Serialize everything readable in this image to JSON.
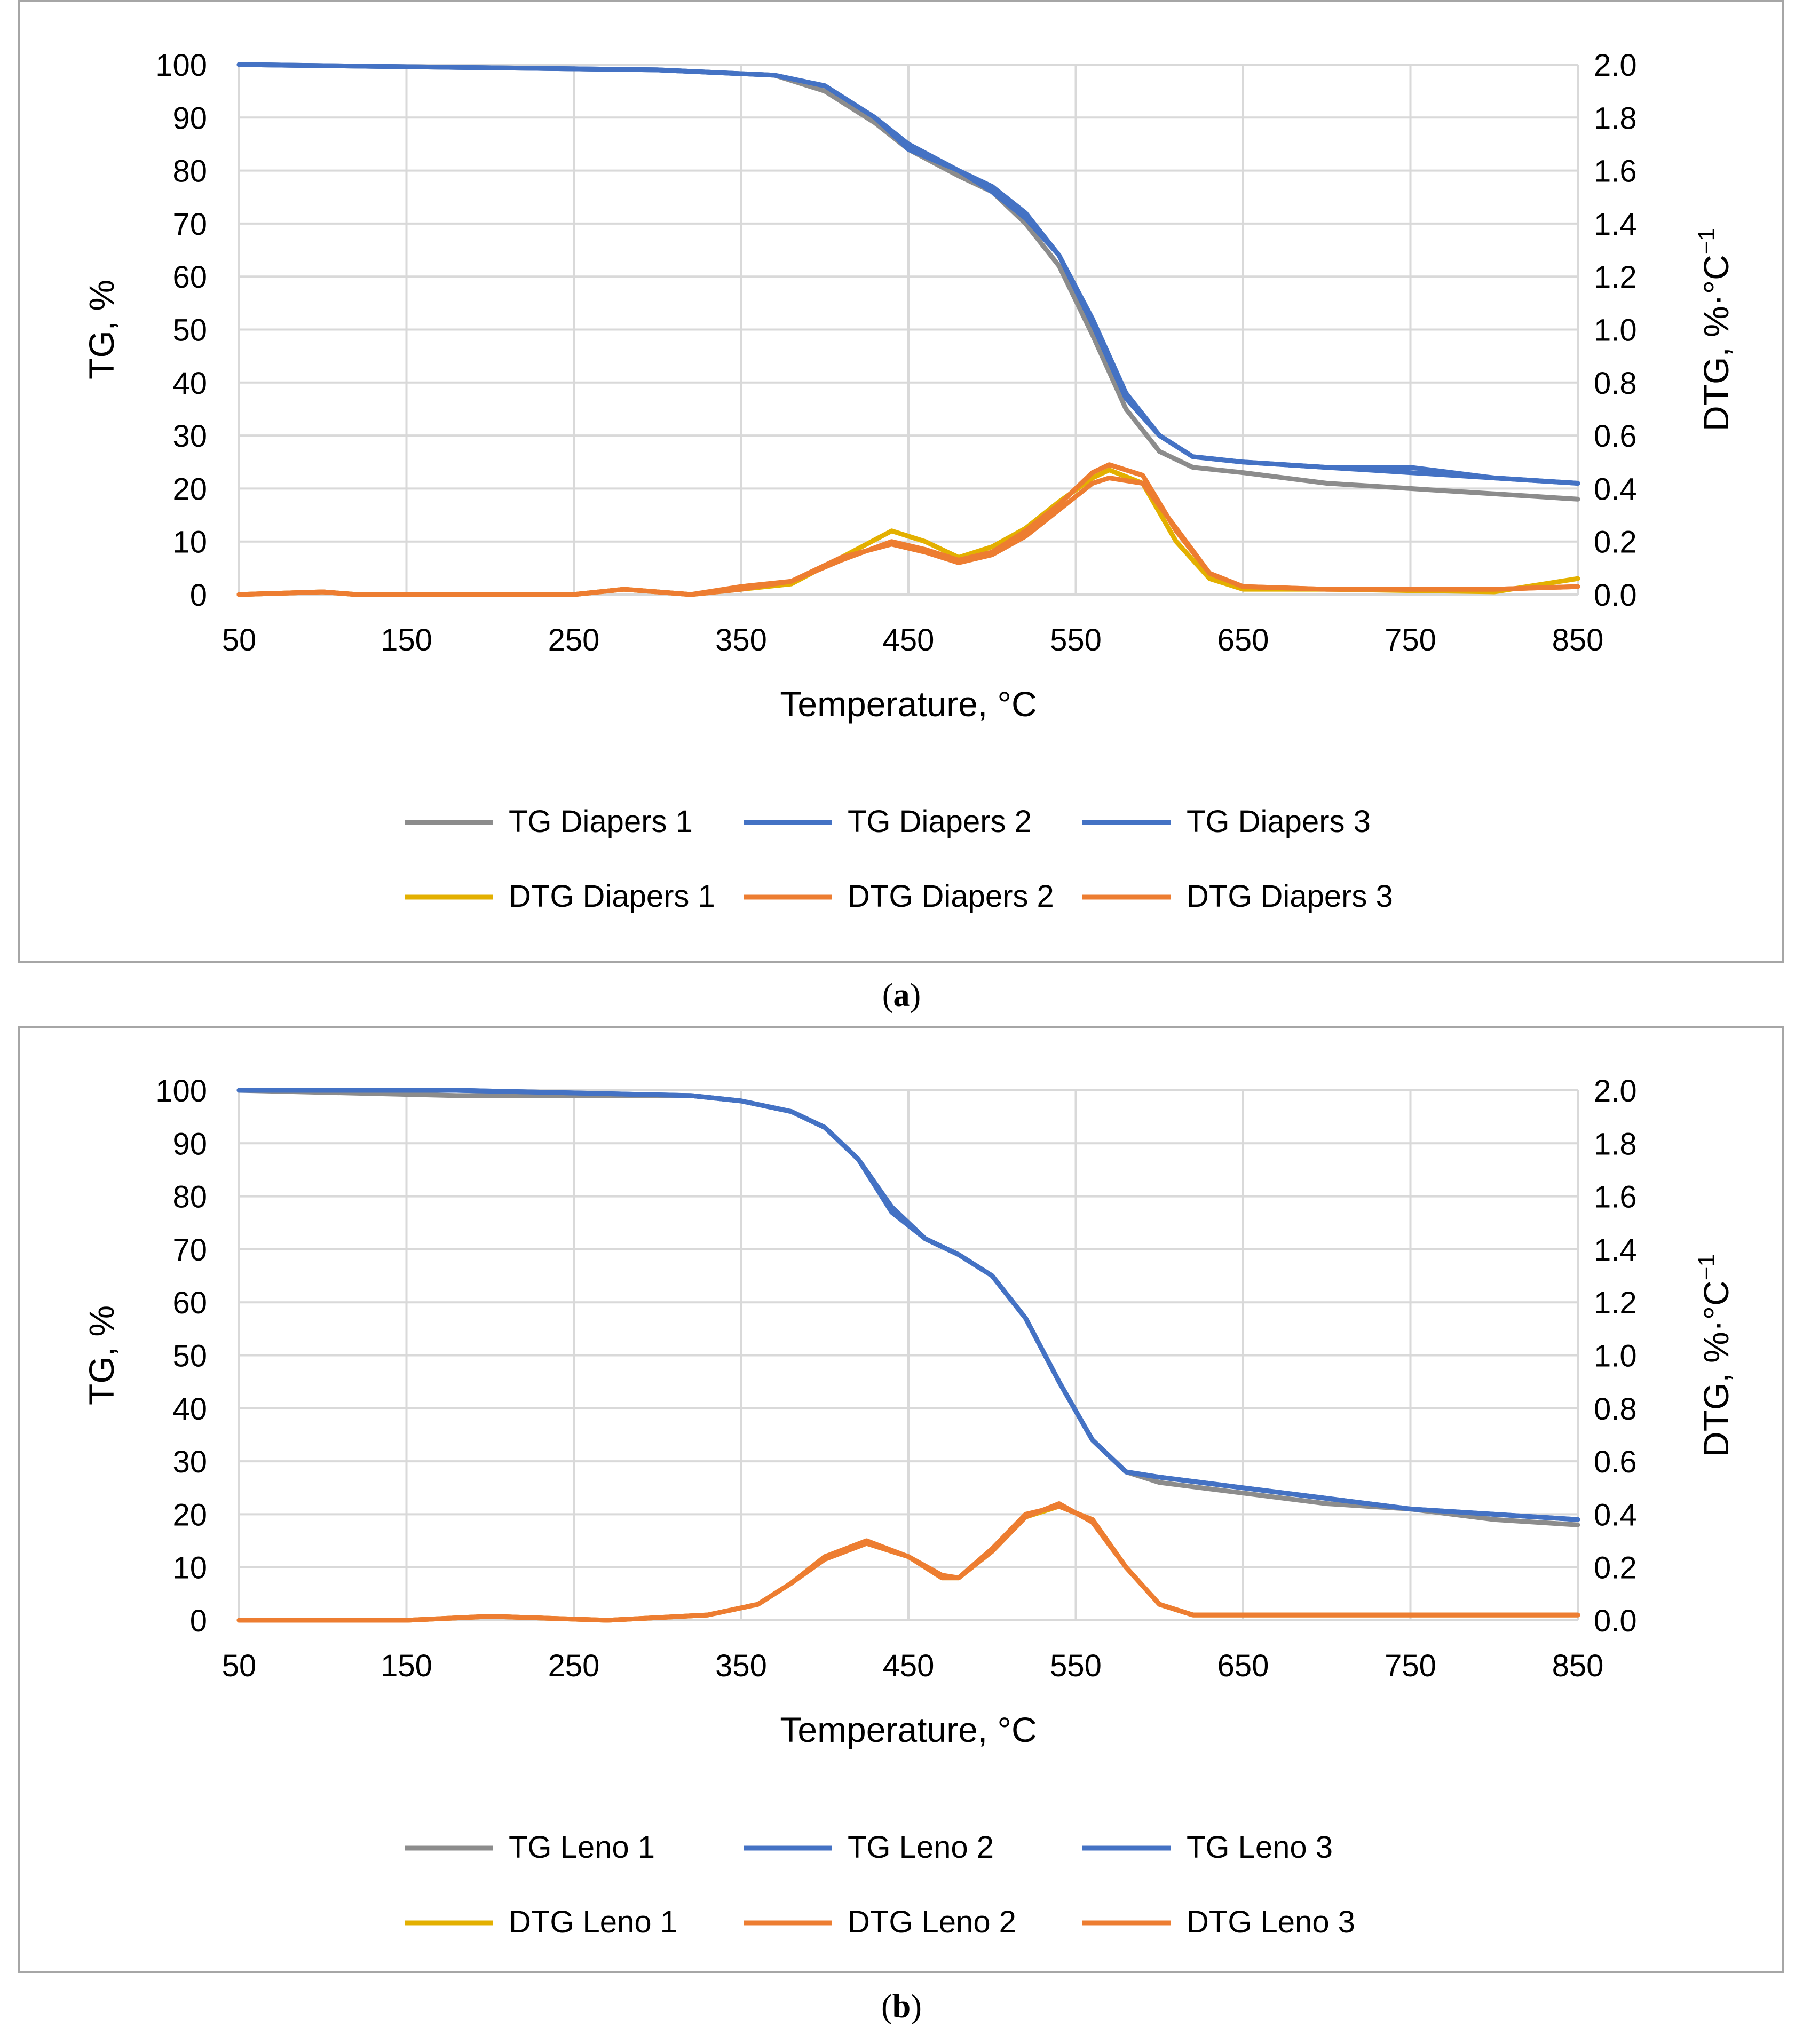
{
  "captions": {
    "a_open": "(",
    "a_letter": "a",
    "a_close": ")",
    "b_open": "(",
    "b_letter": "b",
    "b_close": ")"
  },
  "colors": {
    "grid": "#d9d9d9",
    "frame": "#a6a6a6",
    "tg_gray": "#8c8c8c",
    "tg_blue": "#4472c4",
    "dtg_yellow": "#e3b000",
    "dtg_orange": "#ed7d31"
  },
  "chart_data": [
    {
      "id": "a",
      "type": "line",
      "xlabel": "Temperature, °C",
      "ylabel_left": "TG, %",
      "ylabel_right": "DTG, %·°C",
      "ylabel_right_sup": "−1",
      "xlim": [
        50,
        850
      ],
      "ylim_left": [
        0,
        100
      ],
      "ylim_right": [
        0,
        2.0
      ],
      "x_ticks": [
        "50",
        "150",
        "250",
        "350",
        "450",
        "550",
        "650",
        "750",
        "850"
      ],
      "y_left_ticks": [
        "0",
        "10",
        "20",
        "30",
        "40",
        "50",
        "60",
        "70",
        "80",
        "90",
        "100"
      ],
      "y_right_ticks": [
        "0.0",
        "0.2",
        "0.4",
        "0.6",
        "0.8",
        "1.0",
        "1.2",
        "1.4",
        "1.6",
        "1.8",
        "2.0"
      ],
      "legend_rows": [
        [
          "TG Diapers  1",
          "TG Diapers  2",
          "TG Diapers  3"
        ],
        [
          "DTG Diapers 1",
          "DTG Diapers 2",
          "DTG Diapers 3"
        ]
      ],
      "series": [
        {
          "name": "TG Diapers  1",
          "axis": "left",
          "color": "#8c8c8c",
          "x": [
            50,
            300,
            370,
            400,
            430,
            450,
            480,
            500,
            520,
            540,
            560,
            580,
            600,
            620,
            650,
            700,
            750,
            800,
            850
          ],
          "y": [
            100,
            99,
            98,
            95,
            89,
            84,
            79,
            76,
            70,
            62,
            49,
            35,
            27,
            24,
            23,
            21,
            20,
            19,
            18
          ]
        },
        {
          "name": "TG Diapers  2",
          "axis": "left",
          "color": "#4472c4",
          "x": [
            50,
            300,
            370,
            400,
            430,
            450,
            480,
            500,
            520,
            540,
            560,
            580,
            600,
            620,
            650,
            700,
            750,
            800,
            850
          ],
          "y": [
            100,
            99,
            98,
            96,
            90,
            85,
            80,
            77,
            72,
            64,
            52,
            38,
            30,
            26,
            25,
            24,
            23,
            22,
            21
          ]
        },
        {
          "name": "TG Diapers  3",
          "axis": "left",
          "color": "#4472c4",
          "x": [
            50,
            300,
            370,
            400,
            430,
            450,
            480,
            500,
            520,
            540,
            560,
            580,
            600,
            620,
            650,
            700,
            750,
            800,
            850
          ],
          "y": [
            100,
            99,
            98,
            96,
            90,
            84,
            80,
            76,
            71,
            64,
            51,
            37,
            30,
            26,
            25,
            24,
            24,
            22,
            21
          ]
        },
        {
          "name": "DTG Diapers 1",
          "axis": "right",
          "color": "#e3b000",
          "x": [
            50,
            100,
            120,
            250,
            280,
            320,
            350,
            380,
            410,
            440,
            460,
            480,
            500,
            520,
            540,
            560,
            570,
            590,
            610,
            630,
            650,
            700,
            800,
            850
          ],
          "y": [
            0.0,
            0.01,
            0.0,
            0.0,
            0.02,
            0.0,
            0.02,
            0.04,
            0.14,
            0.24,
            0.2,
            0.14,
            0.18,
            0.25,
            0.35,
            0.44,
            0.47,
            0.42,
            0.2,
            0.06,
            0.02,
            0.02,
            0.01,
            0.06
          ]
        },
        {
          "name": "DTG Diapers 2",
          "axis": "right",
          "color": "#ed7d31",
          "x": [
            50,
            100,
            120,
            250,
            280,
            320,
            350,
            380,
            410,
            440,
            460,
            480,
            500,
            520,
            540,
            560,
            570,
            590,
            610,
            630,
            650,
            700,
            800,
            850
          ],
          "y": [
            0.0,
            0.01,
            0.0,
            0.0,
            0.02,
            0.0,
            0.03,
            0.05,
            0.13,
            0.2,
            0.17,
            0.13,
            0.16,
            0.24,
            0.34,
            0.46,
            0.49,
            0.45,
            0.24,
            0.08,
            0.03,
            0.02,
            0.02,
            0.03
          ]
        },
        {
          "name": "DTG Diapers 3",
          "axis": "right",
          "color": "#ed7d31",
          "x": [
            50,
            100,
            120,
            250,
            280,
            320,
            350,
            380,
            410,
            440,
            460,
            480,
            500,
            520,
            540,
            560,
            570,
            590,
            610,
            630,
            650,
            700,
            800,
            850
          ],
          "y": [
            0.0,
            0.01,
            0.0,
            0.0,
            0.02,
            0.0,
            0.02,
            0.05,
            0.14,
            0.19,
            0.16,
            0.12,
            0.15,
            0.22,
            0.32,
            0.42,
            0.44,
            0.42,
            0.25,
            0.08,
            0.03,
            0.02,
            0.02,
            0.03
          ]
        }
      ]
    },
    {
      "id": "b",
      "type": "line",
      "xlabel": "Temperature, °C",
      "ylabel_left": "TG, %",
      "ylabel_right": "DTG, %·°C",
      "ylabel_right_sup": "−1",
      "xlim": [
        50,
        850
      ],
      "ylim_left": [
        0,
        100
      ],
      "ylim_right": [
        0,
        2.0
      ],
      "x_ticks": [
        "50",
        "150",
        "250",
        "350",
        "450",
        "550",
        "650",
        "750",
        "850"
      ],
      "y_left_ticks": [
        "0",
        "10",
        "20",
        "30",
        "40",
        "50",
        "60",
        "70",
        "80",
        "90",
        "100"
      ],
      "y_right_ticks": [
        "0.0",
        "0.2",
        "0.4",
        "0.6",
        "0.8",
        "1.0",
        "1.2",
        "1.4",
        "1.6",
        "1.8",
        "2.0"
      ],
      "legend_rows": [
        [
          "TG Leno  1",
          "TG Leno  2",
          "TG Leno  3"
        ],
        [
          "DTG Leno 1",
          "DTG Leno 2",
          "DTG Leno 3"
        ]
      ],
      "series": [
        {
          "name": "TG Leno  1",
          "axis": "left",
          "color": "#8c8c8c",
          "x": [
            50,
            180,
            320,
            350,
            380,
            400,
            420,
            440,
            460,
            480,
            500,
            520,
            540,
            560,
            580,
            600,
            650,
            700,
            750,
            800,
            850
          ],
          "y": [
            100,
            99,
            99,
            98,
            96,
            93,
            87,
            78,
            72,
            69,
            65,
            57,
            45,
            34,
            28,
            26,
            24,
            22,
            21,
            19,
            18
          ]
        },
        {
          "name": "TG Leno  2",
          "axis": "left",
          "color": "#4472c4",
          "x": [
            50,
            180,
            320,
            350,
            380,
            400,
            420,
            440,
            460,
            480,
            500,
            520,
            540,
            560,
            580,
            600,
            650,
            700,
            750,
            800,
            850
          ],
          "y": [
            100,
            100,
            99,
            98,
            96,
            93,
            87,
            78,
            72,
            69,
            65,
            57,
            45,
            34,
            28,
            27,
            25,
            23,
            21,
            20,
            19
          ]
        },
        {
          "name": "TG Leno  3",
          "axis": "left",
          "color": "#4472c4",
          "x": [
            50,
            180,
            320,
            350,
            380,
            400,
            420,
            440,
            460,
            480,
            500,
            520,
            540,
            560,
            580,
            600,
            650,
            700,
            750,
            800,
            850
          ],
          "y": [
            100,
            100,
            99,
            98,
            96,
            93,
            87,
            77,
            72,
            69,
            65,
            57,
            45,
            34,
            28,
            27,
            25,
            23,
            21,
            20,
            19
          ]
        },
        {
          "name": "DTG Leno 1",
          "axis": "right",
          "color": "#e3b000",
          "x": [
            50,
            150,
            200,
            270,
            330,
            360,
            380,
            400,
            425,
            450,
            470,
            480,
            500,
            520,
            540,
            560,
            580,
            600,
            620,
            650,
            850
          ],
          "y": [
            0.0,
            0.0,
            0.015,
            0.0,
            0.02,
            0.06,
            0.14,
            0.24,
            0.29,
            0.24,
            0.16,
            0.16,
            0.26,
            0.39,
            0.43,
            0.38,
            0.2,
            0.06,
            0.02,
            0.02,
            0.02
          ]
        },
        {
          "name": "DTG Leno 2",
          "axis": "right",
          "color": "#ed7d31",
          "x": [
            50,
            150,
            200,
            270,
            330,
            360,
            380,
            400,
            425,
            450,
            470,
            480,
            500,
            520,
            540,
            560,
            580,
            600,
            620,
            650,
            850
          ],
          "y": [
            0.0,
            0.0,
            0.015,
            0.0,
            0.02,
            0.06,
            0.14,
            0.24,
            0.3,
            0.24,
            0.16,
            0.16,
            0.27,
            0.4,
            0.43,
            0.38,
            0.2,
            0.06,
            0.02,
            0.02,
            0.02
          ]
        },
        {
          "name": "DTG Leno 3",
          "axis": "right",
          "color": "#ed7d31",
          "x": [
            50,
            150,
            200,
            270,
            330,
            360,
            380,
            400,
            425,
            450,
            470,
            480,
            500,
            520,
            540,
            560,
            580,
            600,
            620,
            650,
            850
          ],
          "y": [
            0.0,
            0.0,
            0.015,
            0.0,
            0.02,
            0.06,
            0.14,
            0.23,
            0.29,
            0.24,
            0.17,
            0.16,
            0.26,
            0.39,
            0.44,
            0.37,
            0.2,
            0.06,
            0.02,
            0.02,
            0.02
          ]
        }
      ]
    }
  ]
}
